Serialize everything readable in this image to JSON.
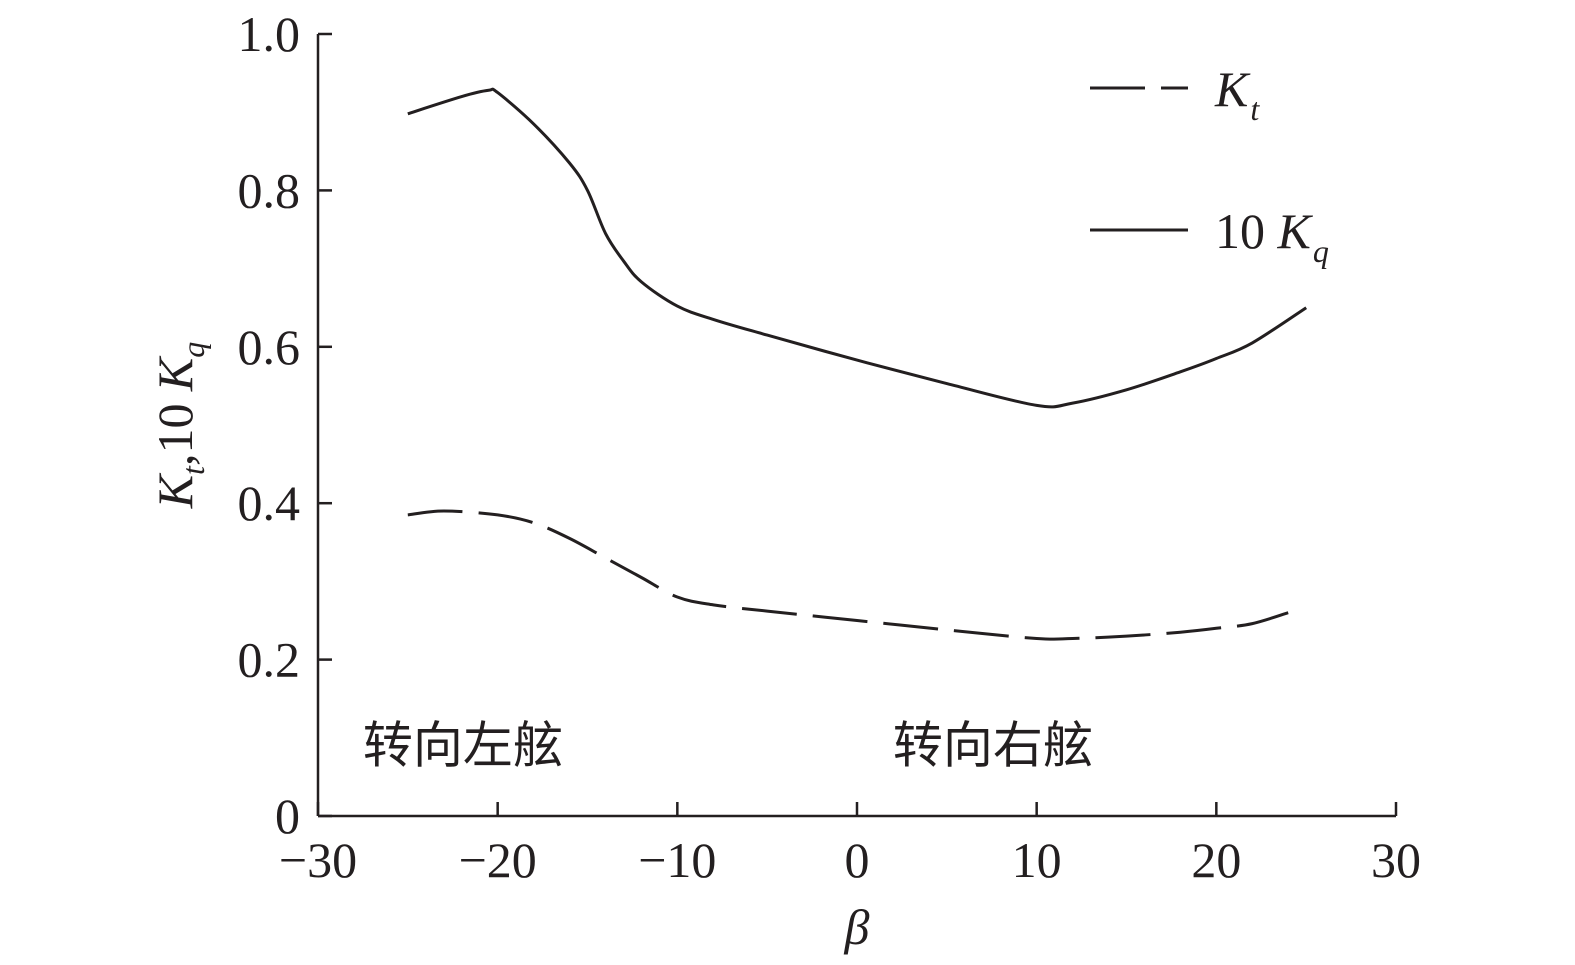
{
  "chart_data": {
    "type": "line",
    "xlabel": "β",
    "ylabel": {
      "parts": [
        "K",
        "t",
        ",10 ",
        "K",
        "q"
      ]
    },
    "xlim": [
      -30,
      30
    ],
    "ylim": [
      0,
      1.0
    ],
    "x_ticks": [
      -30,
      -20,
      -10,
      0,
      10,
      20,
      30
    ],
    "x_tick_labels": [
      "−30",
      "−20",
      "−10",
      "0",
      "10",
      "20",
      "30"
    ],
    "y_ticks": [
      0,
      0.2,
      0.4,
      0.6,
      0.8,
      1.0
    ],
    "y_tick_labels": [
      "0",
      "0.2",
      "0.4",
      "0.6",
      "0.8",
      "1.0"
    ],
    "grid": false,
    "legend_position": "top-right",
    "series": [
      {
        "legend": {
          "main": "K",
          "sub": "t",
          "prefix": ""
        },
        "style": "dashed",
        "x": [
          -25,
          -23,
          -20,
          -18,
          -16,
          -14,
          -12,
          -10,
          -8,
          -5,
          0,
          5,
          10,
          12,
          15,
          18,
          20,
          22,
          24
        ],
        "y": [
          0.385,
          0.39,
          0.385,
          0.375,
          0.355,
          0.33,
          0.305,
          0.28,
          0.27,
          0.262,
          0.25,
          0.238,
          0.227,
          0.227,
          0.23,
          0.235,
          0.24,
          0.246,
          0.26
        ]
      },
      {
        "legend": {
          "main": "K",
          "sub": "q",
          "prefix": "10 "
        },
        "style": "solid",
        "x": [
          -25,
          -22,
          -20.5,
          -20,
          -18,
          -16,
          -15,
          -14,
          -13,
          -12,
          -10,
          -8,
          -5,
          0,
          5,
          10,
          12,
          15,
          18,
          20,
          22,
          25
        ],
        "y": [
          0.898,
          0.92,
          0.928,
          0.925,
          0.885,
          0.835,
          0.8,
          0.745,
          0.71,
          0.683,
          0.652,
          0.635,
          0.615,
          0.583,
          0.553,
          0.525,
          0.528,
          0.545,
          0.568,
          0.585,
          0.605,
          0.65
        ]
      }
    ],
    "annotations": [
      {
        "text": "转向左舷",
        "x": -27.5,
        "y": 0.09
      },
      {
        "text": "转向右舷",
        "x": 2,
        "y": 0.09
      }
    ]
  }
}
